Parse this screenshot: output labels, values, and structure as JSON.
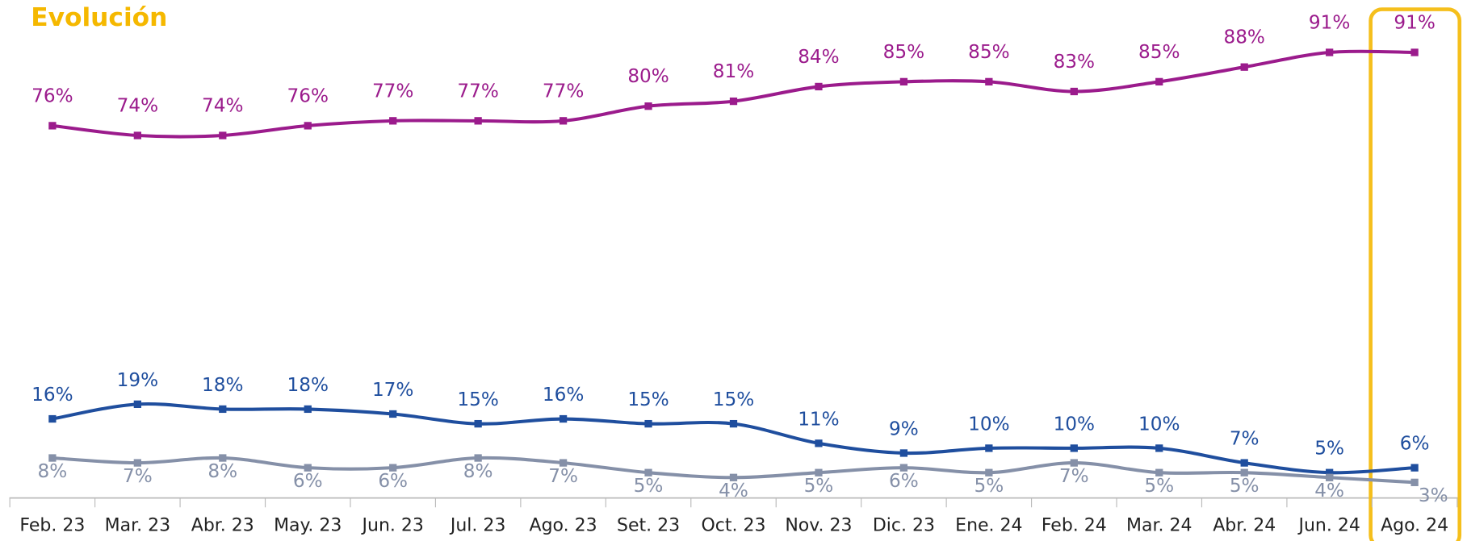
{
  "chart_data": {
    "type": "line",
    "title": "Evolución",
    "categories": [
      "Feb. 23",
      "Mar. 23",
      "Abr. 23",
      "May. 23",
      "Jun. 23",
      "Jul. 23",
      "Ago. 23",
      "Set. 23",
      "Oct. 23",
      "Nov. 23",
      "Dic. 23",
      "Ene. 24",
      "Feb. 24",
      "Mar. 24",
      "Abr. 24",
      "Jun. 24",
      "Ago. 24"
    ],
    "series": [
      {
        "color": "#9b1b8c",
        "values": [
          76,
          74,
          74,
          76,
          77,
          77,
          77,
          80,
          81,
          84,
          85,
          85,
          83,
          85,
          88,
          91,
          91
        ],
        "value_labels": [
          "76%",
          "74%",
          "74%",
          "76%",
          "77%",
          "77%",
          "77%",
          "80%",
          "81%",
          "84%",
          "85%",
          "85%",
          "83%",
          "85%",
          "88%",
          "91%",
          "91%"
        ]
      },
      {
        "color": "#1f4e9e",
        "values": [
          16,
          19,
          18,
          18,
          17,
          15,
          16,
          15,
          15,
          11,
          9,
          10,
          10,
          10,
          7,
          5,
          6
        ],
        "value_labels": [
          "16%",
          "19%",
          "18%",
          "18%",
          "17%",
          "15%",
          "16%",
          "15%",
          "15%",
          "11%",
          "9%",
          "10%",
          "10%",
          "10%",
          "7%",
          "5%",
          "6%"
        ]
      },
      {
        "color": "#8590a8",
        "values": [
          8,
          7,
          8,
          6,
          6,
          8,
          7,
          5,
          4,
          5,
          6,
          5,
          7,
          5,
          5,
          4,
          3
        ],
        "value_labels": [
          "8%",
          "7%",
          "8%",
          "6%",
          "6%",
          "8%",
          "7%",
          "5%",
          "4%",
          "5%",
          "6%",
          "5%",
          "7%",
          "5%",
          "5%",
          "4%",
          "3%"
        ]
      }
    ]
  }
}
